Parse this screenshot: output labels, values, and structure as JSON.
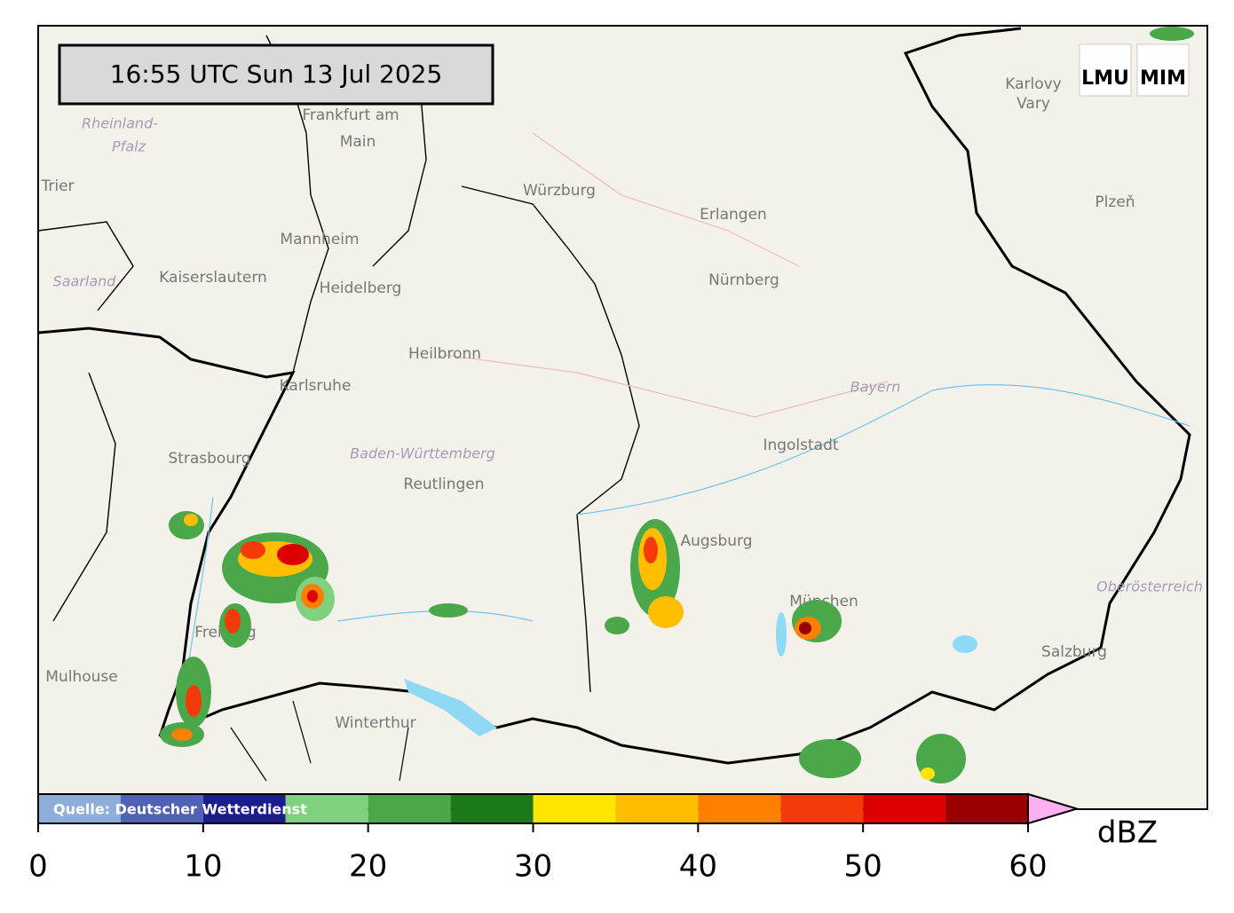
{
  "timestamp": "16:55 UTC  Sun 13 Jul 2025",
  "logos": [
    "LMU",
    "MIM"
  ],
  "source": "Quelle: Deutscher Wetterdienst",
  "places": [
    "Frankfurt am",
    "Main",
    "Würzburg",
    "Erlangen",
    "Nürnberg",
    "Mannheim",
    "Heidelberg",
    "Kaiserslautern",
    "Heilbronn",
    "Karlsruhe",
    "Strasbourg",
    "Baden-Württemberg",
    "Reutlingen",
    "Ingolstadt",
    "Augsburg",
    "München",
    "Freiburg",
    "Mulhouse",
    "Winterthur",
    "Salzburg",
    "Plzeň",
    "Karlovy",
    "Vary",
    "Bayern",
    "Saarland",
    "Oberösterreich",
    "Rheinland-",
    "Pfalz",
    "Trier"
  ],
  "colorbar": {
    "unit": "dBZ",
    "bounds": [
      0,
      5,
      10,
      15,
      20,
      25,
      30,
      35,
      40,
      45,
      50,
      55,
      60
    ],
    "colors": [
      "#8fadd9",
      "#5062b5",
      "#1c1c8c",
      "#7fd07f",
      "#4aa84a",
      "#1a7a1a",
      "#ffe600",
      "#ffbf00",
      "#ff7f00",
      "#f53a0a",
      "#dc0000",
      "#9a0000"
    ],
    "over_color": "#ffb0f0",
    "ticks": [
      0,
      10,
      20,
      30,
      40,
      50,
      60
    ]
  }
}
